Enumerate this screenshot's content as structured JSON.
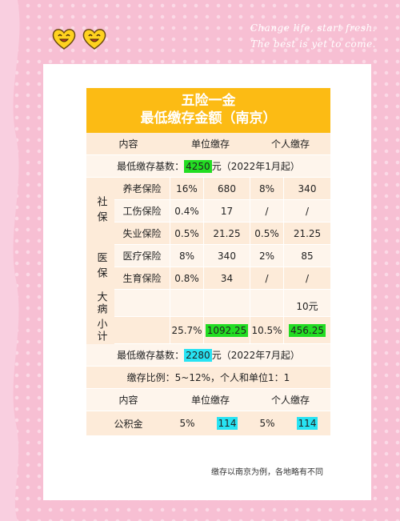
{
  "decor": {
    "line1": "Change life, start fresh.",
    "line2": "The best is yet to come."
  },
  "title": {
    "line1": "五险一金",
    "line2": "最低缴存金额（南京）"
  },
  "header": {
    "c1": "内容",
    "c2": "单位缴存",
    "c3": "个人缴存"
  },
  "base1": {
    "label": "最低缴存基数：",
    "value": "4250",
    "suffix": "元（2022年1月起）"
  },
  "groups": {
    "shebao": "社保",
    "yibao": "医保",
    "dabing": "大病",
    "xiaoji": "小计"
  },
  "rows": [
    {
      "name": "养老保险",
      "unit_rate": "16%",
      "unit_amt": "680",
      "pers_rate": "8%",
      "pers_amt": "340"
    },
    {
      "name": "工伤保险",
      "unit_rate": "0.4%",
      "unit_amt": "17",
      "pers_rate": "/",
      "pers_amt": "/"
    },
    {
      "name": "失业保险",
      "unit_rate": "0.5%",
      "unit_amt": "21.25",
      "pers_rate": "0.5%",
      "pers_amt": "21.25"
    },
    {
      "name": "医疗保险",
      "unit_rate": "8%",
      "unit_amt": "340",
      "pers_rate": "2%",
      "pers_amt": "85"
    },
    {
      "name": "生育保险",
      "unit_rate": "0.8%",
      "unit_amt": "34",
      "pers_rate": "/",
      "pers_amt": "/"
    }
  ],
  "dabing_amt": "10元",
  "subtotal": {
    "unit_rate": "25.7%",
    "unit_amt": "1092.25",
    "pers_rate": "10.5%",
    "pers_amt": "456.25"
  },
  "base2": {
    "label": "最低缴存基数：",
    "value": "2280",
    "suffix": "元（2022年7月起）"
  },
  "ratio": "缴存比例：5~12%，个人和单位1：1",
  "header2": {
    "c1": "内容",
    "c2": "单位缴存",
    "c3": "个人缴存"
  },
  "gjj": {
    "name": "公积金",
    "unit_rate": "5%",
    "unit_amt": "114",
    "pers_rate": "5%",
    "pers_amt": "114"
  },
  "footnote": "缴存以南京为例，各地略有不同",
  "colors": {
    "title_bg": "#fcbb14",
    "highlight_green": "#22dd22",
    "highlight_cyan": "#27e3f3",
    "page_bg": "#f7bfd3"
  }
}
